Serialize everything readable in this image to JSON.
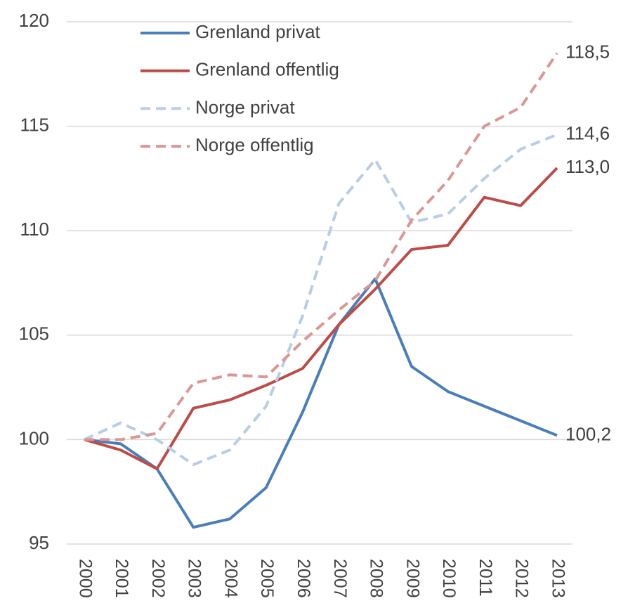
{
  "chart_data": {
    "type": "line",
    "categories": [
      "2000",
      "2001",
      "2002",
      "2003",
      "2004",
      "2005",
      "2006",
      "2007",
      "2008",
      "2009",
      "2010",
      "2011",
      "2012",
      "2013"
    ],
    "ylim": [
      95,
      120
    ],
    "yticks": [
      95,
      100,
      105,
      110,
      115,
      120
    ],
    "grid": true,
    "series": [
      {
        "name": "Grenland privat",
        "color": "#4a7ebb",
        "dashed": false,
        "values": [
          100,
          99.8,
          98.6,
          95.8,
          96.2,
          97.7,
          101.3,
          105.5,
          107.7,
          103.5,
          102.3,
          101.6,
          100.9,
          100.2
        ],
        "value_labels": [
          null,
          null,
          null,
          null,
          null,
          null,
          null,
          null,
          null,
          null,
          null,
          null,
          null,
          "100,2"
        ]
      },
      {
        "name": "Grenland offentlig",
        "color": "#be4b48",
        "dashed": false,
        "values": [
          100,
          99.5,
          98.6,
          101.5,
          101.9,
          102.6,
          103.4,
          105.5,
          107.2,
          109.1,
          109.3,
          111.6,
          111.2,
          113.0
        ],
        "value_labels": [
          null,
          null,
          null,
          null,
          null,
          null,
          null,
          null,
          null,
          null,
          null,
          null,
          null,
          "113,0"
        ]
      },
      {
        "name": "Norge privat",
        "color": "#b9cde5",
        "dashed": true,
        "values": [
          100,
          100.8,
          100.0,
          98.8,
          99.5,
          101.6,
          105.9,
          111.3,
          113.4,
          110.4,
          110.8,
          112.5,
          113.9,
          114.6
        ],
        "value_labels": [
          null,
          null,
          null,
          null,
          null,
          null,
          null,
          null,
          null,
          null,
          null,
          null,
          null,
          "114,6"
        ]
      },
      {
        "name": "Norge offentlig",
        "color": "#d99795",
        "dashed": true,
        "values": [
          100,
          100.0,
          100.3,
          102.7,
          103.1,
          103.0,
          104.7,
          106.2,
          107.6,
          110.5,
          112.4,
          115.0,
          115.9,
          118.5
        ],
        "value_labels": [
          null,
          null,
          null,
          null,
          null,
          null,
          null,
          null,
          null,
          null,
          null,
          null,
          null,
          "118,5"
        ]
      }
    ]
  }
}
